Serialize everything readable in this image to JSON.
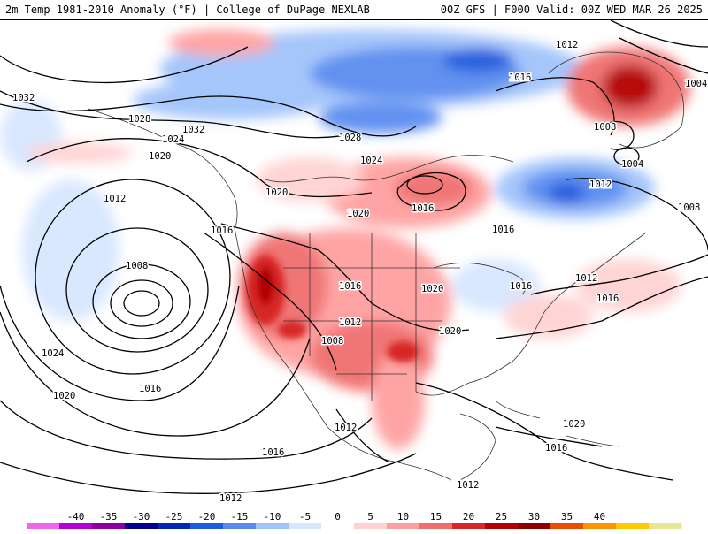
{
  "header": {
    "left": "2m Temp 1981-2010 Anomaly (°F) | College of DuPage NEXLAB",
    "right": "00Z GFS | F000 Valid: 00Z WED MAR 26 2025"
  },
  "isobar_labels": [
    "1032",
    "1028",
    "1024",
    "1032",
    "1020",
    "1012",
    "1016",
    "1008",
    "1024",
    "1020",
    "1016",
    "1028",
    "1024",
    "1016",
    "1020",
    "1020",
    "1016",
    "1016",
    "1012",
    "1008",
    "1020",
    "1020",
    "1016",
    "1012",
    "1016",
    "1012",
    "1008",
    "1004",
    "1012",
    "1008",
    "1012",
    "1016",
    "1020",
    "1016",
    "1012",
    "1016",
    "1012",
    "1004"
  ],
  "colorbar": {
    "ticks": [
      "-40",
      "-35",
      "-30",
      "-25",
      "-20",
      "-15",
      "-10",
      "-5",
      "0",
      "5",
      "10",
      "15",
      "20",
      "25",
      "30",
      "35",
      "40"
    ],
    "colors": [
      "#ee66ee",
      "#b400d2",
      "#8c00a0",
      "#00008c",
      "#0028b4",
      "#1e5adc",
      "#5a8cf0",
      "#a0c3fa",
      "#d7e6ff",
      "#ffffff",
      "#ffd2d2",
      "#ffa0a0",
      "#f06e6e",
      "#d72828",
      "#b40000",
      "#8c0000",
      "#e65000",
      "#ff9600",
      "#ffc800",
      "#e6e696"
    ]
  }
}
